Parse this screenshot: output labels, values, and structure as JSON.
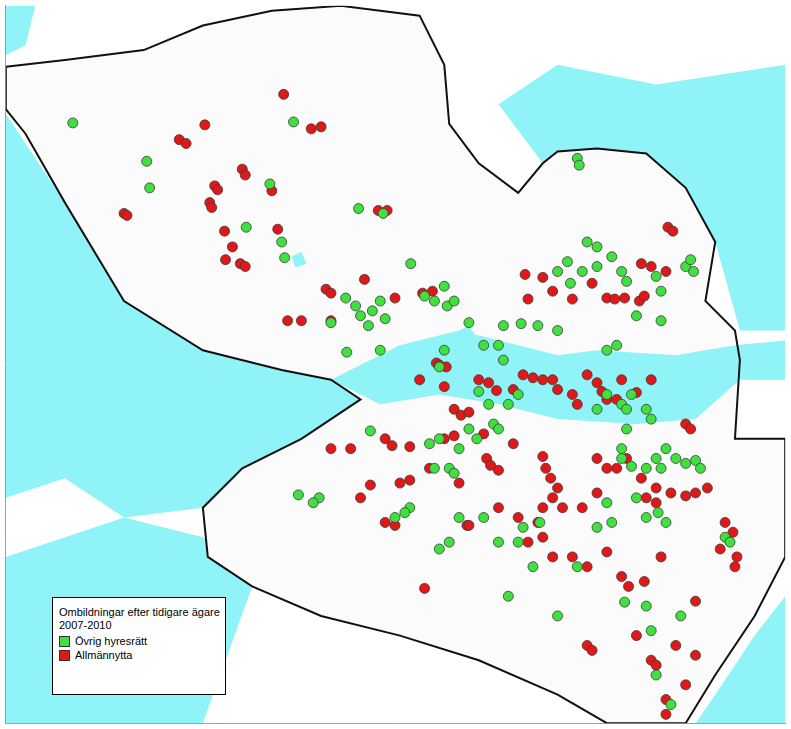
{
  "chart_data": {
    "type": "scatter",
    "legend_title": "Ombildningar efter tidigare ägare 2007-2010",
    "xlim": [
      0,
      791
    ],
    "ylim": [
      0,
      729
    ],
    "grid": false,
    "tick_labels": false,
    "legend": "bottom left",
    "marker": "circle",
    "series": [
      {
        "name": "Övrig hyresrätt",
        "color": "#3fe03f",
        "x": [
          68,
          143,
          146,
          292,
          268,
          244,
          283,
          358,
          383,
          411,
          280,
          345,
          355,
          360,
          368,
          372,
          380,
          385,
          425,
          435,
          448,
          455,
          445,
          346,
          380,
          330,
          580,
          582,
          590,
          600,
          570,
          560,
          573,
          585,
          600,
          615,
          625,
          630,
          660,
          665,
          690,
          698,
          695,
          665,
          640,
          620,
          610,
          560,
          540,
          523,
          505,
          470,
          485,
          445,
          440,
          500,
          505,
          610,
          625,
          630,
          635,
          650,
          655,
          600,
          670,
          680,
          690,
          700,
          705,
          665,
          660,
          650,
          635,
          630,
          625,
          640,
          662,
          670,
          650,
          470,
          478,
          460,
          450,
          440,
          430,
          435,
          455,
          495,
          500,
          510,
          520,
          490,
          480,
          370,
          410,
          405,
          460,
          450,
          440,
          485,
          525,
          535,
          520,
          500,
          510,
          542,
          610,
          615,
          625,
          650,
          655,
          660,
          675,
          685,
          730,
          735,
          297,
          318,
          312,
          395,
          600,
          580,
          628,
          560
        ],
        "values": [
          119,
          158,
          185,
          118,
          181,
          225,
          256,
          206,
          211,
          262,
          240,
          297,
          305,
          315,
          325,
          310,
          300,
          318,
          295,
          300,
          305,
          300,
          285,
          352,
          350,
          322,
          155,
          162,
          240,
          245,
          260,
          270,
          282,
          270,
          265,
          255,
          270,
          280,
          275,
          290,
          265,
          270,
          258,
          320,
          315,
          345,
          350,
          330,
          325,
          323,
          325,
          322,
          345,
          350,
          367,
          345,
          360,
          395,
          405,
          410,
          395,
          410,
          420,
          410,
          450,
          460,
          465,
          462,
          470,
          470,
          460,
          470,
          468,
          430,
          450,
          500,
          515,
          525,
          520,
          430,
          440,
          450,
          470,
          440,
          445,
          470,
          475,
          425,
          430,
          405,
          395,
          405,
          392,
          432,
          510,
          515,
          520,
          545,
          552,
          520,
          530,
          570,
          545,
          545,
          600,
          525,
          505,
          525,
          460,
          610,
          635,
          680,
          710,
          620,
          540,
          545,
          497,
          500,
          505,
          520,
          530,
          570,
          606,
          620
        ]
      },
      {
        "name": "Allmännytta",
        "color": "#e01818",
        "x": [
          282,
          310,
          320,
          202,
          176,
          183,
          120,
          123,
          212,
          215,
          207,
          209,
          240,
          243,
          222,
          230,
          238,
          243,
          223,
          270,
          276,
          286,
          300,
          325,
          330,
          364,
          378,
          387,
          395,
          330,
          423,
          433,
          527,
          530,
          545,
          555,
          575,
          595,
          610,
          618,
          628,
          645,
          655,
          670,
          672,
          677,
          643,
          648,
          437,
          440,
          447,
          420,
          445,
          525,
          535,
          545,
          555,
          560,
          575,
          580,
          590,
          600,
          605,
          610,
          620,
          625,
          640,
          655,
          480,
          490,
          498,
          515,
          455,
          462,
          470,
          445,
          455,
          485,
          488,
          492,
          500,
          515,
          385,
          392,
          350,
          330,
          410,
          400,
          370,
          430,
          460,
          545,
          548,
          553,
          560,
          555,
          565,
          545,
          540,
          600,
          610,
          620,
          630,
          645,
          650,
          660,
          675,
          690,
          660,
          700,
          712,
          690,
          695,
          730,
          738,
          742,
          740,
          725,
          600,
          585,
          500,
          520,
          530,
          468,
          470,
          385,
          395,
          360,
          410,
          575,
          590,
          610,
          625,
          632,
          648,
          665,
          590,
          595,
          655,
          660,
          680,
          690,
          670,
          670,
          640,
          700,
          700,
          545,
          555,
          425
        ],
        "values": [
          90,
          125,
          123,
          121,
          136,
          140,
          211,
          213,
          183,
          187,
          200,
          205,
          166,
          172,
          229,
          245,
          262,
          265,
          258,
          188,
          227,
          320,
          320,
          288,
          292,
          278,
          208,
          208,
          297,
          320,
          292,
          290,
          273,
          298,
          276,
          290,
          298,
          282,
          297,
          298,
          297,
          262,
          265,
          270,
          225,
          229,
          300,
          295,
          363,
          365,
          367,
          380,
          387,
          375,
          378,
          380,
          380,
          390,
          395,
          405,
          375,
          383,
          392,
          400,
          400,
          380,
          393,
          380,
          380,
          383,
          391,
          390,
          410,
          416,
          413,
          440,
          437,
          435,
          460,
          467,
          472,
          445,
          440,
          447,
          450,
          450,
          482,
          485,
          487,
          470,
          485,
          458,
          470,
          480,
          490,
          500,
          510,
          510,
          525,
          460,
          470,
          470,
          460,
          480,
          500,
          490,
          495,
          498,
          505,
          495,
          490,
          425,
          430,
          525,
          535,
          560,
          570,
          552,
          495,
          510,
          510,
          520,
          545,
          528,
          528,
          525,
          528,
          500,
          448,
          560,
          570,
          555,
          580,
          590,
          585,
          560,
          650,
          655,
          665,
          670,
          650,
          690,
          705,
          720,
          640,
          605,
          660,
          540,
          560,
          592
        ]
      }
    ]
  }
}
